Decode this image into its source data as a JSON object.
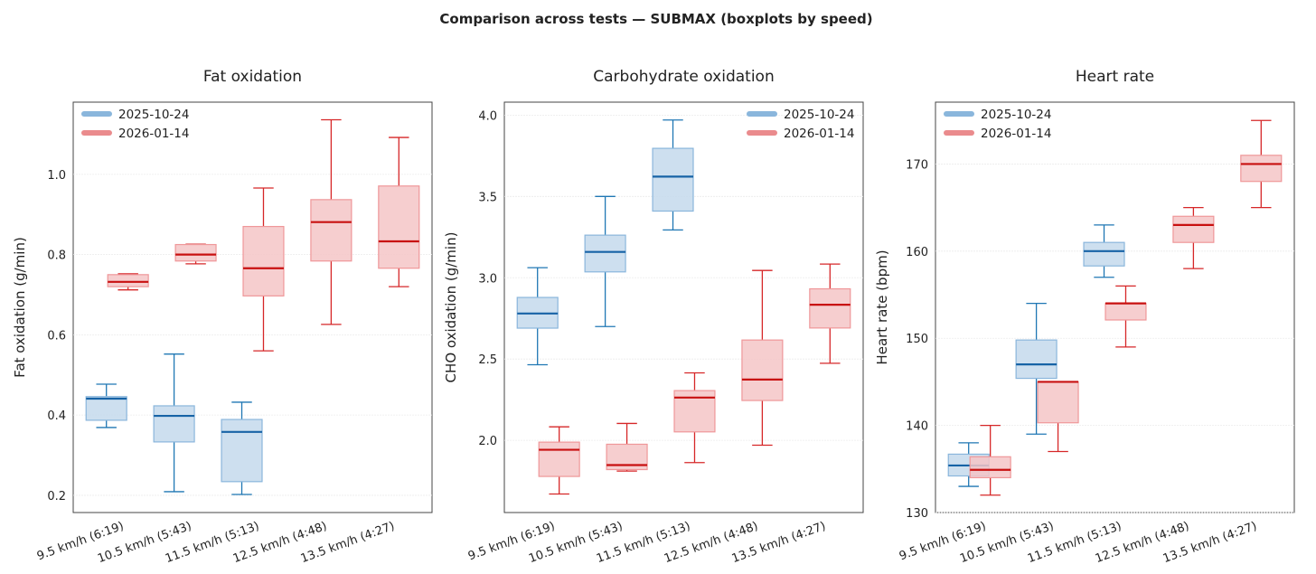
{
  "figure_title": "Comparison across tests — SUBMAX (boxplots by speed)",
  "colors": {
    "series_a_line": "#1f77b4",
    "series_a_fill": "#c4d9ec",
    "series_a_edge": "#8ab6dc",
    "series_a_median": "#1763a6",
    "series_a_legend": "#8ab6dc",
    "series_b_line": "#d62728",
    "series_b_fill": "#f5c5c7",
    "series_b_edge": "#ef9799",
    "series_b_median": "#c81010",
    "series_b_legend": "#ea8b8d"
  },
  "chart_data": [
    {
      "type": "boxplot",
      "title": "Fat oxidation",
      "xlabel": "",
      "ylabel": "Fat oxidation (g/min)",
      "ylim": [
        0.157,
        1.18
      ],
      "yticks": [
        0.2,
        0.4,
        0.6,
        0.8,
        1.0
      ],
      "ytick_labels": [
        "0.2",
        "0.4",
        "0.6",
        "0.8",
        "1.0"
      ],
      "grid": "y",
      "legend": "top-left",
      "categories": [
        "9.5 km/h (6:19)",
        "10.5 km/h (5:43)",
        "11.5 km/h (5:13)",
        "12.5 km/h (4:48)",
        "13.5 km/h (4:27)"
      ],
      "series": [
        {
          "name": "2025-10-24",
          "boxes": [
            {
              "cat": 0,
              "whislo": 0.369,
              "q1": 0.387,
              "med": 0.441,
              "q3": 0.446,
              "whishi": 0.477
            },
            {
              "cat": 1,
              "whislo": 0.209,
              "q1": 0.333,
              "med": 0.398,
              "q3": 0.423,
              "whishi": 0.552
            },
            {
              "cat": 2,
              "whislo": 0.202,
              "q1": 0.234,
              "med": 0.358,
              "q3": 0.389,
              "whishi": 0.432
            }
          ]
        },
        {
          "name": "2026-01-14",
          "boxes": [
            {
              "cat": 0,
              "whislo": 0.712,
              "q1": 0.72,
              "med": 0.732,
              "q3": 0.75,
              "whishi": 0.752
            },
            {
              "cat": 1,
              "whislo": 0.777,
              "q1": 0.784,
              "med": 0.8,
              "q3": 0.825,
              "whishi": 0.826
            },
            {
              "cat": 2,
              "whislo": 0.56,
              "q1": 0.697,
              "med": 0.766,
              "q3": 0.87,
              "whishi": 0.966
            },
            {
              "cat": 3,
              "whislo": 0.626,
              "q1": 0.784,
              "med": 0.881,
              "q3": 0.937,
              "whishi": 1.136
            },
            {
              "cat": 4,
              "whislo": 0.72,
              "q1": 0.766,
              "med": 0.833,
              "q3": 0.971,
              "whishi": 1.092
            }
          ]
        }
      ]
    },
    {
      "type": "boxplot",
      "title": "Carbohydrate oxidation",
      "xlabel": "",
      "ylabel": "CHO oxidation (g/min)",
      "ylim": [
        1.556,
        4.08
      ],
      "yticks": [
        2.0,
        2.5,
        3.0,
        3.5,
        4.0
      ],
      "ytick_labels": [
        "2.0",
        "2.5",
        "3.0",
        "3.5",
        "4.0"
      ],
      "grid": "y",
      "legend": "top-right",
      "categories": [
        "9.5 km/h (6:19)",
        "10.5 km/h (5:43)",
        "11.5 km/h (5:13)",
        "12.5 km/h (4:48)",
        "13.5 km/h (4:27)"
      ],
      "series": [
        {
          "name": "2025-10-24",
          "boxes": [
            {
              "cat": 0,
              "whislo": 2.465,
              "q1": 2.69,
              "med": 2.78,
              "q3": 2.879,
              "whishi": 3.062
            },
            {
              "cat": 1,
              "whislo": 2.7,
              "q1": 3.036,
              "med": 3.159,
              "q3": 3.262,
              "whishi": 3.5
            },
            {
              "cat": 2,
              "whislo": 3.294,
              "q1": 3.41,
              "med": 3.622,
              "q3": 3.796,
              "whishi": 3.97
            }
          ]
        },
        {
          "name": "2026-01-14",
          "boxes": [
            {
              "cat": 0,
              "whislo": 1.67,
              "q1": 1.778,
              "med": 1.942,
              "q3": 1.989,
              "whishi": 2.083
            },
            {
              "cat": 1,
              "whislo": 1.811,
              "q1": 1.82,
              "med": 1.848,
              "q3": 1.976,
              "whishi": 2.104
            },
            {
              "cat": 2,
              "whislo": 1.863,
              "q1": 2.052,
              "med": 2.263,
              "q3": 2.306,
              "whishi": 2.415
            },
            {
              "cat": 3,
              "whislo": 1.97,
              "q1": 2.245,
              "med": 2.374,
              "q3": 2.617,
              "whishi": 3.045
            },
            {
              "cat": 4,
              "whislo": 2.474,
              "q1": 2.691,
              "med": 2.834,
              "q3": 2.932,
              "whishi": 3.084
            }
          ]
        }
      ]
    },
    {
      "type": "boxplot",
      "title": "Heart rate",
      "xlabel": "",
      "ylabel": "Heart rate (bpm)",
      "ylim": [
        130,
        177.1
      ],
      "yticks": [
        130,
        140,
        150,
        160,
        170
      ],
      "ytick_labels": [
        "130",
        "140",
        "150",
        "160",
        "170"
      ],
      "grid": "y",
      "legend": "top-left",
      "categories": [
        "9.5 km/h (6:19)",
        "10.5 km/h (5:43)",
        "11.5 km/h (5:13)",
        "12.5 km/h (4:48)",
        "13.5 km/h (4:27)"
      ],
      "series": [
        {
          "name": "2025-10-24",
          "boxes": [
            {
              "cat": 0,
              "whislo": 133,
              "q1": 134.2,
              "med": 135.4,
              "q3": 136.7,
              "whishi": 138
            },
            {
              "cat": 1,
              "whislo": 139,
              "q1": 145.4,
              "med": 147,
              "q3": 149.8,
              "whishi": 154
            },
            {
              "cat": 2,
              "whislo": 157,
              "q1": 158.3,
              "med": 160,
              "q3": 161,
              "whishi": 163
            }
          ]
        },
        {
          "name": "2026-01-14",
          "boxes": [
            {
              "cat": 0,
              "whislo": 132,
              "q1": 134,
              "med": 134.9,
              "q3": 136.4,
              "whishi": 140
            },
            {
              "cat": 1,
              "whislo": 137,
              "q1": 140.3,
              "med": 145,
              "q3": 145,
              "whishi": 145
            },
            {
              "cat": 2,
              "whislo": 149,
              "q1": 152.1,
              "med": 154,
              "q3": 154,
              "whishi": 156
            },
            {
              "cat": 3,
              "whislo": 158,
              "q1": 161,
              "med": 163,
              "q3": 164,
              "whishi": 165
            },
            {
              "cat": 4,
              "whislo": 165,
              "q1": 168,
              "med": 170,
              "q3": 171,
              "whishi": 175
            }
          ]
        }
      ]
    }
  ]
}
